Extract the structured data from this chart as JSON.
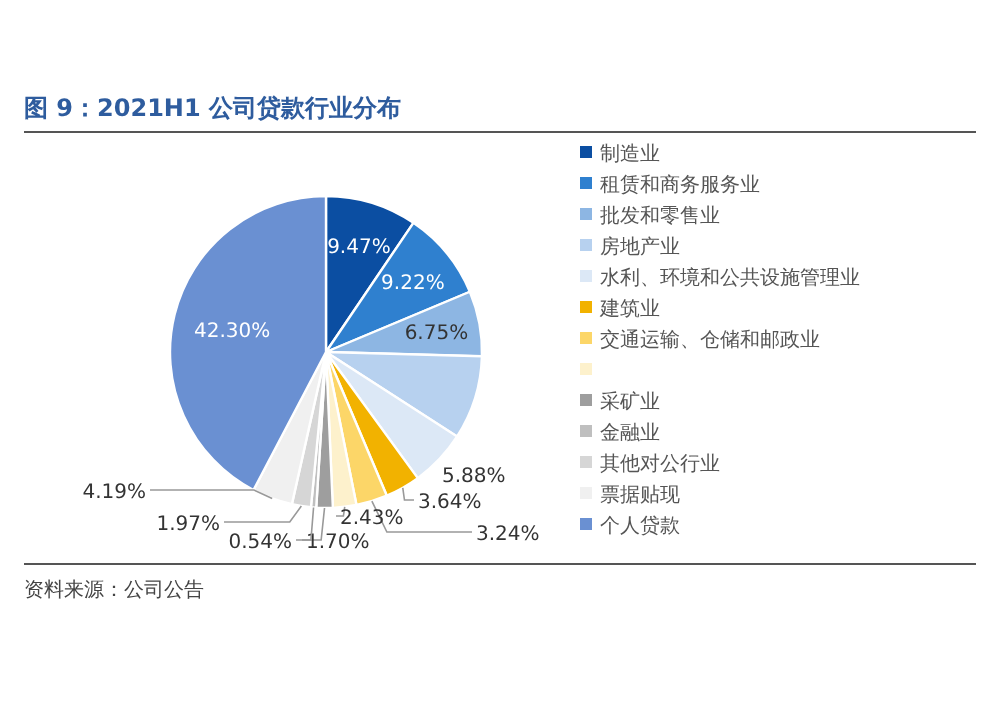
{
  "chart_data": {
    "type": "pie",
    "title": "图 9：2021H1 公司贷款行业分布",
    "categories": [
      "制造业",
      "租赁和商务服务业",
      "批发和零售业",
      "房地产业",
      "水利、环境和公共设施管理业",
      "建筑业",
      "交通运输、仓储和邮政业",
      null,
      "采矿业",
      "金融业",
      "其他对公行业",
      "票据贴现",
      "个人贷款"
    ],
    "values": [
      9.47,
      9.22,
      6.75,
      8.67,
      5.88,
      3.64,
      3.24,
      2.43,
      1.7,
      0.54,
      1.97,
      4.19,
      42.3
    ],
    "colors": [
      "#0b4ea2",
      "#2f80cf",
      "#8db6e3",
      "#b7d1ef",
      "#dce8f6",
      "#f2b200",
      "#fcd668",
      "#fdf1cc",
      "#9e9e9e",
      "#bfbfbf",
      "#d6d6d6",
      "#f0f0f0",
      "#6a90d2"
    ],
    "value_labels": [
      "9.47%",
      "9.22%",
      "6.75%",
      null,
      "5.88%",
      "3.64%",
      "3.24%",
      "2.43%",
      "1.70%",
      "0.54%",
      "1.97%",
      "4.19%",
      "42.30%"
    ],
    "legend": "right",
    "annotations": [
      "资料来源：公司公告"
    ]
  }
}
